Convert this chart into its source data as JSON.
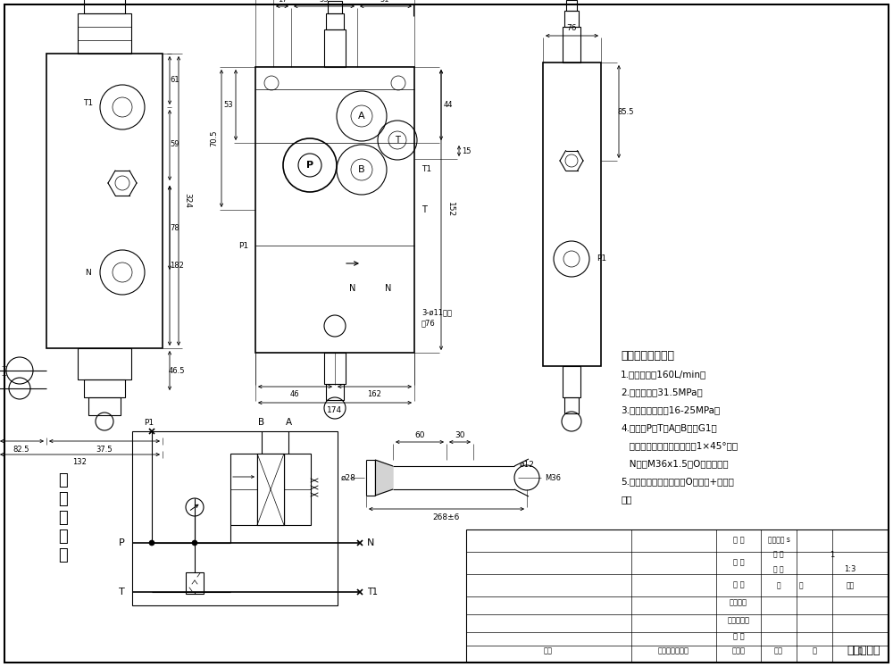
{
  "tech_requirements": [
    "技术要求和参数：",
    "1.公称流量：160L/min；",
    "2.公称压力：31.5MPa；",
    "3.主安全阀压力：16-25MPa；",
    "4.油口：P、T、A、B口为G1；",
    "   均为平面密封，螺纹孔口倒1×45°角；",
    "   N口为M36x1.5，O型圈密封；",
    "5.控制方式：手动控制，O型阀杆+弹簧复",
    "位。"
  ],
  "valve_label": "一联多路阀"
}
